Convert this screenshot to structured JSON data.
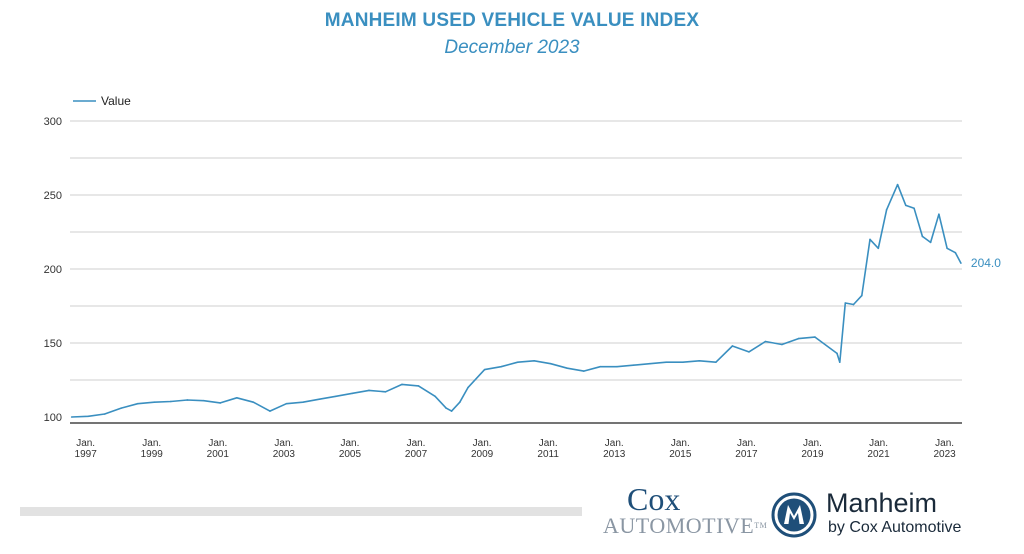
{
  "header": {
    "title": "MANHEIM USED VEHICLE VALUE INDEX",
    "subtitle": "December 2023"
  },
  "chart_data": {
    "type": "line",
    "title": "MANHEIM USED VEHICLE VALUE INDEX",
    "subtitle": "December 2023",
    "xlabel": "",
    "ylabel": "",
    "ylim": [
      100,
      300
    ],
    "yticks": [
      100,
      150,
      200,
      250,
      300
    ],
    "xticks": [
      {
        "year": 1997,
        "label": [
          "Jan.",
          "1997"
        ]
      },
      {
        "year": 1999,
        "label": [
          "Jan.",
          "1999"
        ]
      },
      {
        "year": 2001,
        "label": [
          "Jan.",
          "2001"
        ]
      },
      {
        "year": 2003,
        "label": [
          "Jan.",
          "2003"
        ]
      },
      {
        "year": 2005,
        "label": [
          "Jan.",
          "2005"
        ]
      },
      {
        "year": 2007,
        "label": [
          "Jan.",
          "2007"
        ]
      },
      {
        "year": 2009,
        "label": [
          "Jan.",
          "2009"
        ]
      },
      {
        "year": 2011,
        "label": [
          "Jan.",
          "2011"
        ]
      },
      {
        "year": 2013,
        "label": [
          "Jan.",
          "2013"
        ]
      },
      {
        "year": 2015,
        "label": [
          "Jan.",
          "2015"
        ]
      },
      {
        "year": 2017,
        "label": [
          "Jan.",
          "2017"
        ]
      },
      {
        "year": 2019,
        "label": [
          "Jan.",
          "2019"
        ]
      },
      {
        "year": 2021,
        "label": [
          "Jan.",
          "2021"
        ]
      },
      {
        "year": 2023,
        "label": [
          "Jan.",
          "2023"
        ]
      }
    ],
    "grid": true,
    "legend": "top-left",
    "series": [
      {
        "name": "Value",
        "color": "#3a8fc0",
        "end_label": "204.0",
        "points": [
          [
            "1997-01",
            100
          ],
          [
            "1997-07",
            100.5
          ],
          [
            "1998-01",
            102
          ],
          [
            "1998-07",
            106
          ],
          [
            "1999-01",
            109
          ],
          [
            "1999-07",
            110
          ],
          [
            "2000-01",
            110.5
          ],
          [
            "2000-07",
            111.5
          ],
          [
            "2001-01",
            111
          ],
          [
            "2001-07",
            109.5
          ],
          [
            "2002-01",
            113
          ],
          [
            "2002-07",
            110
          ],
          [
            "2003-01",
            104
          ],
          [
            "2003-07",
            109
          ],
          [
            "2004-01",
            110
          ],
          [
            "2004-07",
            112
          ],
          [
            "2005-01",
            114
          ],
          [
            "2005-07",
            116
          ],
          [
            "2006-01",
            118
          ],
          [
            "2006-07",
            117
          ],
          [
            "2007-01",
            122
          ],
          [
            "2007-07",
            121
          ],
          [
            "2008-01",
            114
          ],
          [
            "2008-05",
            106
          ],
          [
            "2008-07",
            104
          ],
          [
            "2008-10",
            110
          ],
          [
            "2009-01",
            120
          ],
          [
            "2009-07",
            132
          ],
          [
            "2010-01",
            134
          ],
          [
            "2010-07",
            137
          ],
          [
            "2011-01",
            138
          ],
          [
            "2011-07",
            136
          ],
          [
            "2012-01",
            133
          ],
          [
            "2012-07",
            131
          ],
          [
            "2013-01",
            134
          ],
          [
            "2013-07",
            134
          ],
          [
            "2014-01",
            135
          ],
          [
            "2014-07",
            136
          ],
          [
            "2015-01",
            137
          ],
          [
            "2015-07",
            137
          ],
          [
            "2016-01",
            138
          ],
          [
            "2016-07",
            137
          ],
          [
            "2017-01",
            148
          ],
          [
            "2017-07",
            144
          ],
          [
            "2018-01",
            151
          ],
          [
            "2018-07",
            149
          ],
          [
            "2019-01",
            153
          ],
          [
            "2019-07",
            154
          ],
          [
            "2020-03",
            143
          ],
          [
            "2020-04",
            137
          ],
          [
            "2020-06",
            177
          ],
          [
            "2020-09",
            176
          ],
          [
            "2020-12",
            182
          ],
          [
            "2021-03",
            220
          ],
          [
            "2021-06",
            214
          ],
          [
            "2021-09",
            240
          ],
          [
            "2022-01",
            257
          ],
          [
            "2022-04",
            243
          ],
          [
            "2022-07",
            241
          ],
          [
            "2022-10",
            222
          ],
          [
            "2023-01",
            218
          ],
          [
            "2023-04",
            237
          ],
          [
            "2023-07",
            214
          ],
          [
            "2023-10",
            211
          ],
          [
            "2023-12",
            204
          ]
        ]
      }
    ]
  },
  "footer": {
    "cox_top": "Cox",
    "cox_bottom": "Automotive",
    "cox_tm": "TM",
    "manheim_name": "Manheim",
    "manheim_sub": "by Cox Automotive",
    "manheim_logo_letter": "M",
    "logo_color": "#1f4f79",
    "bar_color": "#e2e2e2"
  }
}
